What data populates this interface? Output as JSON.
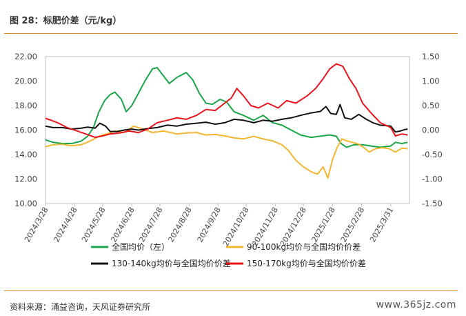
{
  "header": {
    "title": "图 28：标肥价差（元/kg）"
  },
  "footer": {
    "source": "资料来源：涌益咨询，天风证券研究所",
    "watermark": "www.365jz.com"
  },
  "chart_data": {
    "type": "line",
    "y_left": {
      "min": 10,
      "max": 22,
      "ticks": [
        "22.00",
        "20.00",
        "18.00",
        "16.00",
        "14.00",
        "12.00",
        "10.00"
      ]
    },
    "y_right": {
      "min": -1.5,
      "max": 1.5,
      "ticks": [
        "1.50",
        "1.00",
        "0.50",
        "0.00",
        "-0.50",
        "-1.00",
        "-1.50"
      ]
    },
    "x_range": [
      "2024-03-28",
      "2025-04-20"
    ],
    "x_ticks": [
      "2024/3/28",
      "2024/4/28",
      "2024/5/28",
      "2024/6/28",
      "2024/7/28",
      "2024/8/28",
      "2024/9/28",
      "2024/10/28",
      "2024/11/28",
      "2024/12/28",
      "2025/1/28",
      "2025/2/28",
      "2025/3/31"
    ],
    "colors": {
      "green": "#1aa548",
      "yellow": "#f2b630",
      "black": "#111111",
      "red": "#e8141c"
    },
    "series": [
      {
        "name": "全国均价（左）",
        "axis": "left",
        "color": "#1aa548",
        "points": [
          [
            "2024-03-28",
            15.2
          ],
          [
            "2024-04-05",
            15.0
          ],
          [
            "2024-04-15",
            14.9
          ],
          [
            "2024-04-25",
            14.9
          ],
          [
            "2024-05-05",
            15.1
          ],
          [
            "2024-05-12",
            15.5
          ],
          [
            "2024-05-18",
            16.2
          ],
          [
            "2024-05-24",
            17.5
          ],
          [
            "2024-05-30",
            18.4
          ],
          [
            "2024-06-05",
            18.9
          ],
          [
            "2024-06-10",
            19.1
          ],
          [
            "2024-06-17",
            18.5
          ],
          [
            "2024-06-22",
            17.5
          ],
          [
            "2024-06-28",
            18.0
          ],
          [
            "2024-07-05",
            19.0
          ],
          [
            "2024-07-12",
            20.0
          ],
          [
            "2024-07-20",
            21.0
          ],
          [
            "2024-07-25",
            21.1
          ],
          [
            "2024-07-31",
            20.5
          ],
          [
            "2024-08-07",
            19.8
          ],
          [
            "2024-08-15",
            20.3
          ],
          [
            "2024-08-25",
            20.7
          ],
          [
            "2024-09-01",
            20.1
          ],
          [
            "2024-09-08",
            19.0
          ],
          [
            "2024-09-15",
            18.2
          ],
          [
            "2024-09-22",
            18.1
          ],
          [
            "2024-09-30",
            18.5
          ],
          [
            "2024-10-07",
            18.3
          ],
          [
            "2024-10-15",
            17.5
          ],
          [
            "2024-10-25",
            17.2
          ],
          [
            "2024-11-05",
            16.8
          ],
          [
            "2024-11-15",
            17.2
          ],
          [
            "2024-11-25",
            16.6
          ],
          [
            "2024-12-05",
            16.4
          ],
          [
            "2024-12-15",
            16.0
          ],
          [
            "2024-12-25",
            15.6
          ],
          [
            "2025-01-05",
            15.4
          ],
          [
            "2025-01-15",
            15.5
          ],
          [
            "2025-01-25",
            15.6
          ],
          [
            "2025-02-01",
            15.5
          ],
          [
            "2025-02-06",
            14.9
          ],
          [
            "2025-02-12",
            14.6
          ],
          [
            "2025-02-20",
            14.8
          ],
          [
            "2025-03-01",
            14.8
          ],
          [
            "2025-03-10",
            14.7
          ],
          [
            "2025-03-20",
            14.6
          ],
          [
            "2025-03-31",
            14.7
          ],
          [
            "2025-04-05",
            15.0
          ],
          [
            "2025-04-12",
            14.9
          ],
          [
            "2025-04-18",
            15.0
          ]
        ]
      },
      {
        "name": "90-100kg均价与全国均价价差",
        "axis": "right",
        "color": "#f2b630",
        "points": [
          [
            "2024-03-28",
            -0.34
          ],
          [
            "2024-04-05",
            -0.3
          ],
          [
            "2024-04-15",
            -0.29
          ],
          [
            "2024-04-25",
            -0.32
          ],
          [
            "2024-05-05",
            -0.3
          ],
          [
            "2024-05-15",
            -0.22
          ],
          [
            "2024-05-25",
            -0.12
          ],
          [
            "2024-06-01",
            -0.08
          ],
          [
            "2024-06-10",
            -0.02
          ],
          [
            "2024-06-20",
            -0.05
          ],
          [
            "2024-06-30",
            0.08
          ],
          [
            "2024-07-10",
            0.02
          ],
          [
            "2024-07-20",
            -0.05
          ],
          [
            "2024-08-01",
            -0.02
          ],
          [
            "2024-08-15",
            -0.08
          ],
          [
            "2024-08-25",
            -0.06
          ],
          [
            "2024-09-05",
            -0.05
          ],
          [
            "2024-09-15",
            -0.1
          ],
          [
            "2024-09-25",
            -0.09
          ],
          [
            "2024-10-05",
            -0.12
          ],
          [
            "2024-10-15",
            -0.16
          ],
          [
            "2024-10-25",
            -0.18
          ],
          [
            "2024-11-05",
            -0.13
          ],
          [
            "2024-11-15",
            -0.18
          ],
          [
            "2024-11-25",
            -0.22
          ],
          [
            "2024-12-05",
            -0.3
          ],
          [
            "2024-12-12",
            -0.42
          ],
          [
            "2024-12-20",
            -0.62
          ],
          [
            "2024-12-28",
            -0.75
          ],
          [
            "2025-01-05",
            -0.85
          ],
          [
            "2025-01-12",
            -0.9
          ],
          [
            "2025-01-18",
            -0.75
          ],
          [
            "2025-01-23",
            -0.98
          ],
          [
            "2025-01-28",
            -0.6
          ],
          [
            "2025-02-02",
            -0.35
          ],
          [
            "2025-02-07",
            -0.18
          ],
          [
            "2025-02-12",
            -0.22
          ],
          [
            "2025-02-18",
            -0.25
          ],
          [
            "2025-02-24",
            -0.28
          ],
          [
            "2025-03-02",
            -0.35
          ],
          [
            "2025-03-08",
            -0.45
          ],
          [
            "2025-03-15",
            -0.38
          ],
          [
            "2025-03-22",
            -0.36
          ],
          [
            "2025-03-29",
            -0.38
          ],
          [
            "2025-04-05",
            -0.45
          ],
          [
            "2025-04-12",
            -0.37
          ],
          [
            "2025-04-18",
            -0.38
          ]
        ]
      },
      {
        "name": "130-140kg均价与全国均价价差",
        "axis": "right",
        "color": "#111111",
        "points": [
          [
            "2024-03-28",
            0.08
          ],
          [
            "2024-04-05",
            0.05
          ],
          [
            "2024-04-15",
            0.05
          ],
          [
            "2024-04-25",
            0.02
          ],
          [
            "2024-05-05",
            0.04
          ],
          [
            "2024-05-12",
            0.06
          ],
          [
            "2024-05-20",
            0.04
          ],
          [
            "2024-05-25",
            0.14
          ],
          [
            "2024-05-31",
            0.08
          ],
          [
            "2024-06-05",
            -0.03
          ],
          [
            "2024-06-12",
            -0.03
          ],
          [
            "2024-06-20",
            0.0
          ],
          [
            "2024-06-28",
            0.02
          ],
          [
            "2024-07-05",
            0.0
          ],
          [
            "2024-07-15",
            0.03
          ],
          [
            "2024-07-25",
            0.05
          ],
          [
            "2024-08-05",
            0.1
          ],
          [
            "2024-08-15",
            0.08
          ],
          [
            "2024-08-25",
            0.12
          ],
          [
            "2024-09-05",
            0.14
          ],
          [
            "2024-09-15",
            0.16
          ],
          [
            "2024-09-25",
            0.12
          ],
          [
            "2024-10-05",
            0.15
          ],
          [
            "2024-10-15",
            0.22
          ],
          [
            "2024-10-25",
            0.2
          ],
          [
            "2024-11-05",
            0.15
          ],
          [
            "2024-11-15",
            0.2
          ],
          [
            "2024-11-25",
            0.18
          ],
          [
            "2024-12-05",
            0.22
          ],
          [
            "2024-12-15",
            0.25
          ],
          [
            "2024-12-25",
            0.3
          ],
          [
            "2025-01-05",
            0.35
          ],
          [
            "2025-01-15",
            0.38
          ],
          [
            "2025-01-21",
            0.48
          ],
          [
            "2025-01-26",
            0.34
          ],
          [
            "2025-02-01",
            0.32
          ],
          [
            "2025-02-05",
            0.52
          ],
          [
            "2025-02-10",
            0.25
          ],
          [
            "2025-02-17",
            0.22
          ],
          [
            "2025-02-25",
            0.32
          ],
          [
            "2025-03-05",
            0.22
          ],
          [
            "2025-03-12",
            0.15
          ],
          [
            "2025-03-20",
            0.1
          ],
          [
            "2025-03-31",
            0.08
          ],
          [
            "2025-04-05",
            -0.04
          ],
          [
            "2025-04-10",
            -0.02
          ],
          [
            "2025-04-15",
            0.01
          ],
          [
            "2025-04-18",
            0.02
          ]
        ]
      },
      {
        "name": "150-170kg均价与全国均价价差",
        "axis": "right",
        "color": "#e8141c",
        "points": [
          [
            "2024-03-28",
            0.24
          ],
          [
            "2024-04-03",
            0.2
          ],
          [
            "2024-04-10",
            0.15
          ],
          [
            "2024-04-20",
            0.05
          ],
          [
            "2024-05-01",
            -0.02
          ],
          [
            "2024-05-10",
            -0.08
          ],
          [
            "2024-05-20",
            -0.15
          ],
          [
            "2024-05-28",
            -0.12
          ],
          [
            "2024-06-05",
            -0.08
          ],
          [
            "2024-06-15",
            -0.06
          ],
          [
            "2024-06-25",
            -0.02
          ],
          [
            "2024-07-05",
            -0.05
          ],
          [
            "2024-07-15",
            0.02
          ],
          [
            "2024-07-25",
            0.15
          ],
          [
            "2024-08-05",
            0.2
          ],
          [
            "2024-08-15",
            0.25
          ],
          [
            "2024-08-25",
            0.22
          ],
          [
            "2024-09-05",
            0.3
          ],
          [
            "2024-09-15",
            0.42
          ],
          [
            "2024-09-25",
            0.4
          ],
          [
            "2024-10-05",
            0.55
          ],
          [
            "2024-10-12",
            0.65
          ],
          [
            "2024-10-18",
            0.85
          ],
          [
            "2024-10-25",
            0.7
          ],
          [
            "2024-11-02",
            0.5
          ],
          [
            "2024-11-10",
            0.45
          ],
          [
            "2024-11-20",
            0.55
          ],
          [
            "2024-12-01",
            0.45
          ],
          [
            "2024-12-10",
            0.6
          ],
          [
            "2024-12-20",
            0.55
          ],
          [
            "2025-01-01",
            0.7
          ],
          [
            "2025-01-10",
            0.85
          ],
          [
            "2025-01-18",
            1.05
          ],
          [
            "2025-01-25",
            1.25
          ],
          [
            "2025-02-01",
            1.35
          ],
          [
            "2025-02-08",
            1.3
          ],
          [
            "2025-02-15",
            1.05
          ],
          [
            "2025-02-22",
            0.85
          ],
          [
            "2025-03-01",
            0.55
          ],
          [
            "2025-03-10",
            0.35
          ],
          [
            "2025-03-20",
            0.15
          ],
          [
            "2025-03-31",
            0.05
          ],
          [
            "2025-04-05",
            -0.12
          ],
          [
            "2025-04-12",
            -0.08
          ],
          [
            "2025-04-18",
            -0.1
          ]
        ]
      }
    ]
  }
}
